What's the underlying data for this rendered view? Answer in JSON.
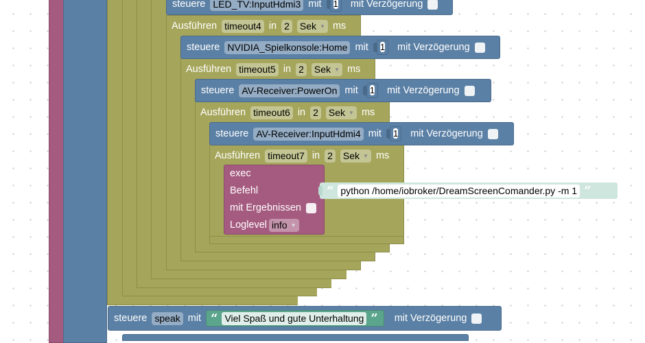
{
  "labels": {
    "control": "steuere",
    "with": "mit",
    "with_delay": "mit Verzögerung",
    "execute": "Ausführen",
    "in": "in",
    "ms": "ms",
    "exec": "exec",
    "command": "Befehl",
    "with_results": "mit Ergebnissen",
    "loglevel": "Loglevel"
  },
  "controls": [
    {
      "target": "LED_TV:InputHdmi3",
      "value": "1"
    },
    {
      "target": "NVIDIA_Spielkonsole:Home",
      "value": "1"
    },
    {
      "target": "AV-Receiver:PowerOn",
      "value": "1"
    },
    {
      "target": "AV-Receiver:InputHdmi4",
      "value": "1"
    }
  ],
  "timeouts": [
    {
      "name": "timeout4",
      "value": "2",
      "unit": "Sek"
    },
    {
      "name": "timeout5",
      "value": "2",
      "unit": "Sek"
    },
    {
      "name": "timeout6",
      "value": "2",
      "unit": "Sek"
    },
    {
      "name": "timeout7",
      "value": "2",
      "unit": "Sek"
    }
  ],
  "exec_block": {
    "command_text": "python /home/iobroker/DreamScreenComander.py -m 1",
    "loglevel": "info"
  },
  "speak_block": {
    "target": "speak",
    "text": "Viel Spaß und gute Unterhaltung"
  },
  "colors": {
    "background": "#ffffff",
    "timeout_block": "#a5a65b",
    "control_block": "#5b80a5",
    "exec_block": "#a55b80",
    "string_block": "#5ba58c"
  }
}
